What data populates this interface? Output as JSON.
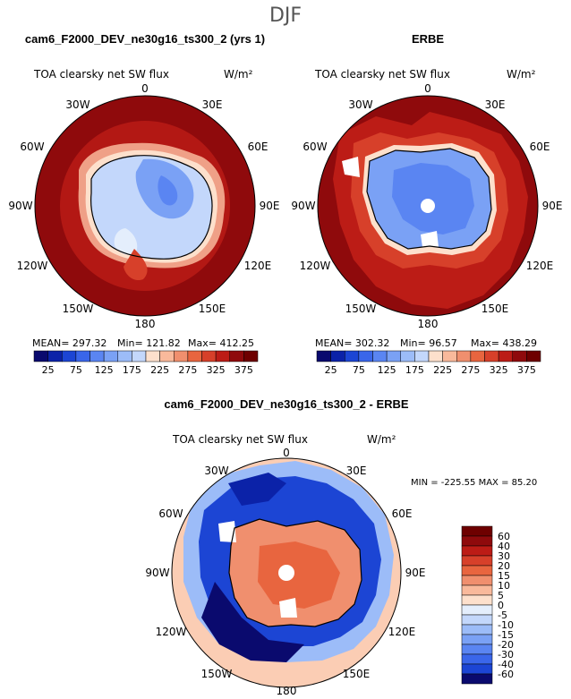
{
  "season": "DJF",
  "colors": {
    "warm": [
      "#fde0cc",
      "#f9b99b",
      "#f08f6e",
      "#e8653f",
      "#d7402a",
      "#bc1c16",
      "#8f0a0c",
      "#6e0000"
    ],
    "cool": [
      "#0a0a6e",
      "#0b22a8",
      "#1c45d4",
      "#3a66ea",
      "#5a85f2",
      "#7aa1f5",
      "#9cbcf8",
      "#c3d7fb",
      "#e4eefc"
    ],
    "land_outline": "#000000",
    "ocean_far": "#9b0a0a"
  },
  "chart_data": [
    {
      "type": "heatmap",
      "projection": "south-polar-stereographic",
      "title": "cam6_F2000_DEV_ne30g16_ts300_2 (yrs 1)",
      "subtitle": "TOA clearsky net SW flux",
      "units": "W/m²",
      "lon_labels": [
        "0",
        "30E",
        "60E",
        "90E",
        "120E",
        "150E",
        "180",
        "150W",
        "120W",
        "90W",
        "60W",
        "30W"
      ],
      "stats": {
        "mean": "MEAN= 297.32",
        "min": "Min= 121.82",
        "max": "Max= 412.25"
      },
      "colorbar": {
        "ticks": [
          "25",
          "75",
          "125",
          "175",
          "225",
          "275",
          "325",
          "375"
        ],
        "levels": [
          25,
          50,
          75,
          100,
          125,
          150,
          175,
          200,
          225,
          250,
          275,
          300,
          325,
          350,
          375,
          400
        ]
      },
      "summary": {
        "interior_mean_estimate": 140,
        "coast_ring": 300,
        "ocean": 400
      }
    },
    {
      "type": "heatmap",
      "projection": "south-polar-stereographic",
      "title": "ERBE",
      "subtitle": "TOA clearsky net SW flux",
      "units": "W/m²",
      "lon_labels": [
        "0",
        "30E",
        "60E",
        "90E",
        "120E",
        "150E",
        "180",
        "150W",
        "120W",
        "90W",
        "60W",
        "30W"
      ],
      "stats": {
        "mean": "MEAN= 302.32",
        "min": "Min= 96.57",
        "max": "Max= 438.29"
      },
      "colorbar": {
        "ticks": [
          "25",
          "75",
          "125",
          "175",
          "225",
          "275",
          "325",
          "375"
        ],
        "levels": [
          25,
          50,
          75,
          100,
          125,
          150,
          175,
          200,
          225,
          250,
          275,
          300,
          325,
          350,
          375,
          400
        ]
      },
      "summary": {
        "interior_mean_estimate": 150,
        "coast_ring": 330,
        "ocean": 410
      }
    },
    {
      "type": "heatmap",
      "projection": "south-polar-stereographic",
      "title": "cam6_F2000_DEV_ne30g16_ts300_2 - ERBE",
      "subtitle": "TOA clearsky net SW flux",
      "units": "W/m²",
      "lon_labels": [
        "0",
        "30E",
        "60E",
        "90E",
        "120E",
        "150E",
        "180",
        "150W",
        "120W",
        "90W",
        "60W",
        "30W"
      ],
      "stats": {
        "minmax": "MIN = -225.55  MAX =  85.20"
      },
      "colorbar": {
        "ticks": [
          "60",
          "40",
          "30",
          "20",
          "15",
          "10",
          "5",
          "0",
          "-5",
          "-10",
          "-15",
          "-20",
          "-30",
          "-40",
          "-60"
        ],
        "levels": [
          60,
          40,
          30,
          20,
          15,
          10,
          5,
          0,
          -5,
          -10,
          -15,
          -20,
          -30,
          -40,
          -60
        ]
      },
      "summary": {
        "interior": 15,
        "coast_ring": -40,
        "far_ocean": 5
      }
    }
  ]
}
